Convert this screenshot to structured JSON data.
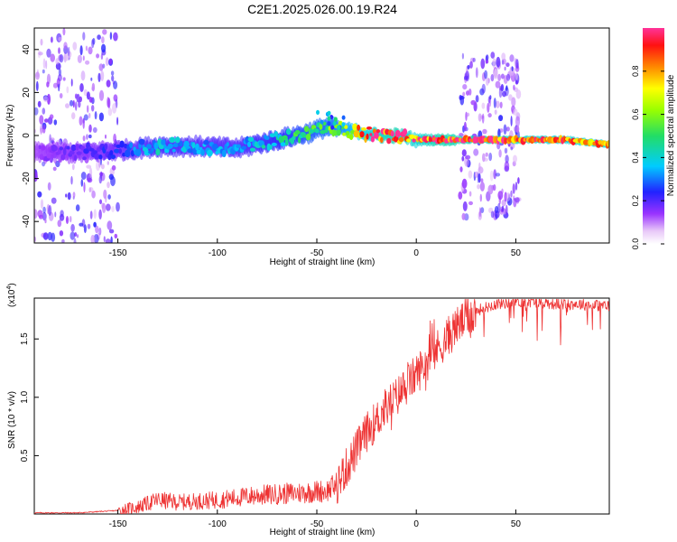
{
  "title": "C2E1.2025.026.00.19.R24",
  "chart_data": [
    {
      "type": "heatmap",
      "xlabel": "Height of straight line (km)",
      "ylabel": "Frequency (Hz)",
      "xlim": [
        -192,
        97
      ],
      "ylim": [
        -50,
        50
      ],
      "xticks": [
        -150,
        -100,
        -50,
        0,
        50
      ],
      "yticks": [
        -40,
        -20,
        0,
        20,
        40
      ],
      "colorbar": {
        "label": "Normalized spectral amplitude",
        "range": [
          0,
          1
        ],
        "ticks": [
          "0.0",
          "0.2",
          "0.4",
          "0.6",
          "0.8"
        ],
        "tick_values": [
          0.0,
          0.2,
          0.4,
          0.6,
          0.8
        ]
      },
      "ridge": {
        "x": [
          -192,
          -170,
          -150,
          -130,
          -110,
          -90,
          -70,
          -55,
          -45,
          -38,
          -30,
          -20,
          -10,
          0,
          10,
          25,
          50,
          75,
          95
        ],
        "freq": [
          -8,
          -8,
          -7,
          -5,
          -5,
          -6,
          -2,
          1,
          4,
          3,
          2,
          0,
          0,
          -2,
          -2,
          -2,
          -2,
          -2,
          -4
        ],
        "level": [
          0.15,
          0.2,
          0.25,
          0.4,
          0.35,
          0.35,
          0.45,
          0.55,
          0.6,
          0.65,
          0.8,
          0.95,
          1.0,
          0.9,
          1.0,
          1.0,
          0.95,
          0.9,
          0.9
        ]
      },
      "noise_regions": [
        {
          "x_range": [
            -192,
            -150
          ],
          "freq_range": [
            -50,
            50
          ],
          "level": 0.15
        },
        {
          "x_range": [
            22,
            52
          ],
          "freq_range": [
            -38,
            38
          ],
          "level": 0.15
        }
      ]
    },
    {
      "type": "line",
      "xlabel": "Height of straight line (km)",
      "ylabel": "SNR (10 * v/v)",
      "multiplier_label": "(x10",
      "multiplier_exponent": "4",
      "multiplier_close": ")",
      "xlim": [
        -192,
        97
      ],
      "ylim": [
        0,
        1.85
      ],
      "xticks": [
        -150,
        -100,
        -50,
        0,
        50
      ],
      "yticks": [
        0.5,
        1.0,
        1.5
      ],
      "ytick_labels": [
        "0.5",
        "1.0",
        "1.5"
      ],
      "color": "#ee3333",
      "trend": {
        "x": [
          -192,
          -170,
          -150,
          -140,
          -130,
          -120,
          -100,
          -80,
          -60,
          -45,
          -40,
          -35,
          -30,
          -25,
          -20,
          -15,
          -10,
          -5,
          0,
          5,
          10,
          15,
          20,
          25,
          30,
          40,
          50,
          60,
          70,
          80,
          97
        ],
        "y": [
          0.01,
          0.01,
          0.03,
          0.06,
          0.12,
          0.1,
          0.12,
          0.16,
          0.18,
          0.2,
          0.25,
          0.4,
          0.55,
          0.7,
          0.8,
          0.92,
          1.0,
          1.1,
          1.2,
          1.3,
          1.4,
          1.5,
          1.6,
          1.68,
          1.74,
          1.8,
          1.82,
          1.82,
          1.8,
          1.8,
          1.78
        ]
      }
    }
  ]
}
